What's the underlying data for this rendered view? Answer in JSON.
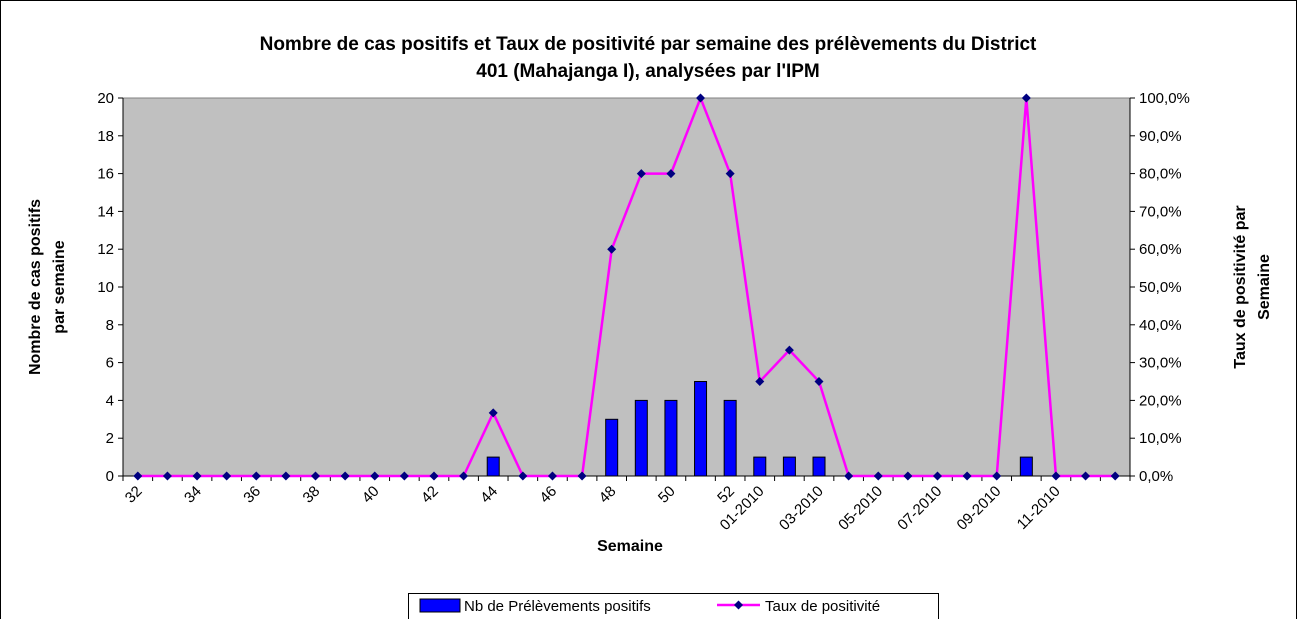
{
  "chart_data": {
    "type": "bar-line",
    "title": [
      "Nombre de cas positifs et Taux de positivité par semaine des prélèvements du District",
      "401 (Mahajanga I), analysées par l'IPM"
    ],
    "x_label": "Semaine",
    "y_label": [
      "Nombre de cas positifs",
      "par semaine"
    ],
    "y2_label": [
      "Taux de positivité par",
      "Semaine"
    ],
    "categories": [
      "32",
      null,
      "34",
      null,
      "36",
      null,
      "38",
      null,
      "40",
      null,
      "42",
      null,
      "44",
      null,
      "46",
      null,
      "48",
      null,
      "50",
      null,
      "52",
      "01-2010",
      null,
      "03-2010",
      null,
      "05-2010",
      null,
      "07-2010",
      null,
      "09-2010",
      null,
      "11-2010",
      null,
      null
    ],
    "series": [
      {
        "name": "Nb de Prélèvements positifs",
        "type": "bar",
        "color": "#0000ff",
        "values": [
          0,
          0,
          0,
          0,
          0,
          0,
          0,
          0,
          0,
          0,
          0,
          0,
          1,
          0,
          0,
          0,
          3,
          4,
          4,
          5,
          4,
          1,
          1,
          1,
          0,
          0,
          0,
          0,
          0,
          0,
          1,
          0,
          0,
          0
        ]
      },
      {
        "name": "Taux de positivité",
        "type": "line",
        "axis": "y2",
        "color": "#ff00ff",
        "marker_color": "#000080",
        "values": [
          0,
          0,
          0,
          0,
          0,
          0,
          0,
          0,
          0,
          0,
          0,
          0,
          16.7,
          0,
          0,
          0,
          60,
          80,
          80,
          100,
          80,
          25,
          33.3,
          25,
          0,
          0,
          0,
          0,
          0,
          0,
          100,
          0,
          0,
          0
        ]
      }
    ],
    "ylim": [
      0,
      20
    ],
    "yticks": [
      0,
      2,
      4,
      6,
      8,
      10,
      12,
      14,
      16,
      18,
      20
    ],
    "y2lim": [
      0,
      100
    ],
    "y2ticks": [
      {
        "value": 0,
        "label": "0,0%"
      },
      {
        "value": 10,
        "label": "10,0%"
      },
      {
        "value": 20,
        "label": "20,0%"
      },
      {
        "value": 30,
        "label": "30,0%"
      },
      {
        "value": 40,
        "label": "40,0%"
      },
      {
        "value": 50,
        "label": "50,0%"
      },
      {
        "value": 60,
        "label": "60,0%"
      },
      {
        "value": 70,
        "label": "70,0%"
      },
      {
        "value": 80,
        "label": "80,0%"
      },
      {
        "value": 90,
        "label": "90,0%"
      },
      {
        "value": 100,
        "label": "100,0%"
      }
    ],
    "plot_background": "#c0c0c0",
    "legend": "bottom"
  }
}
